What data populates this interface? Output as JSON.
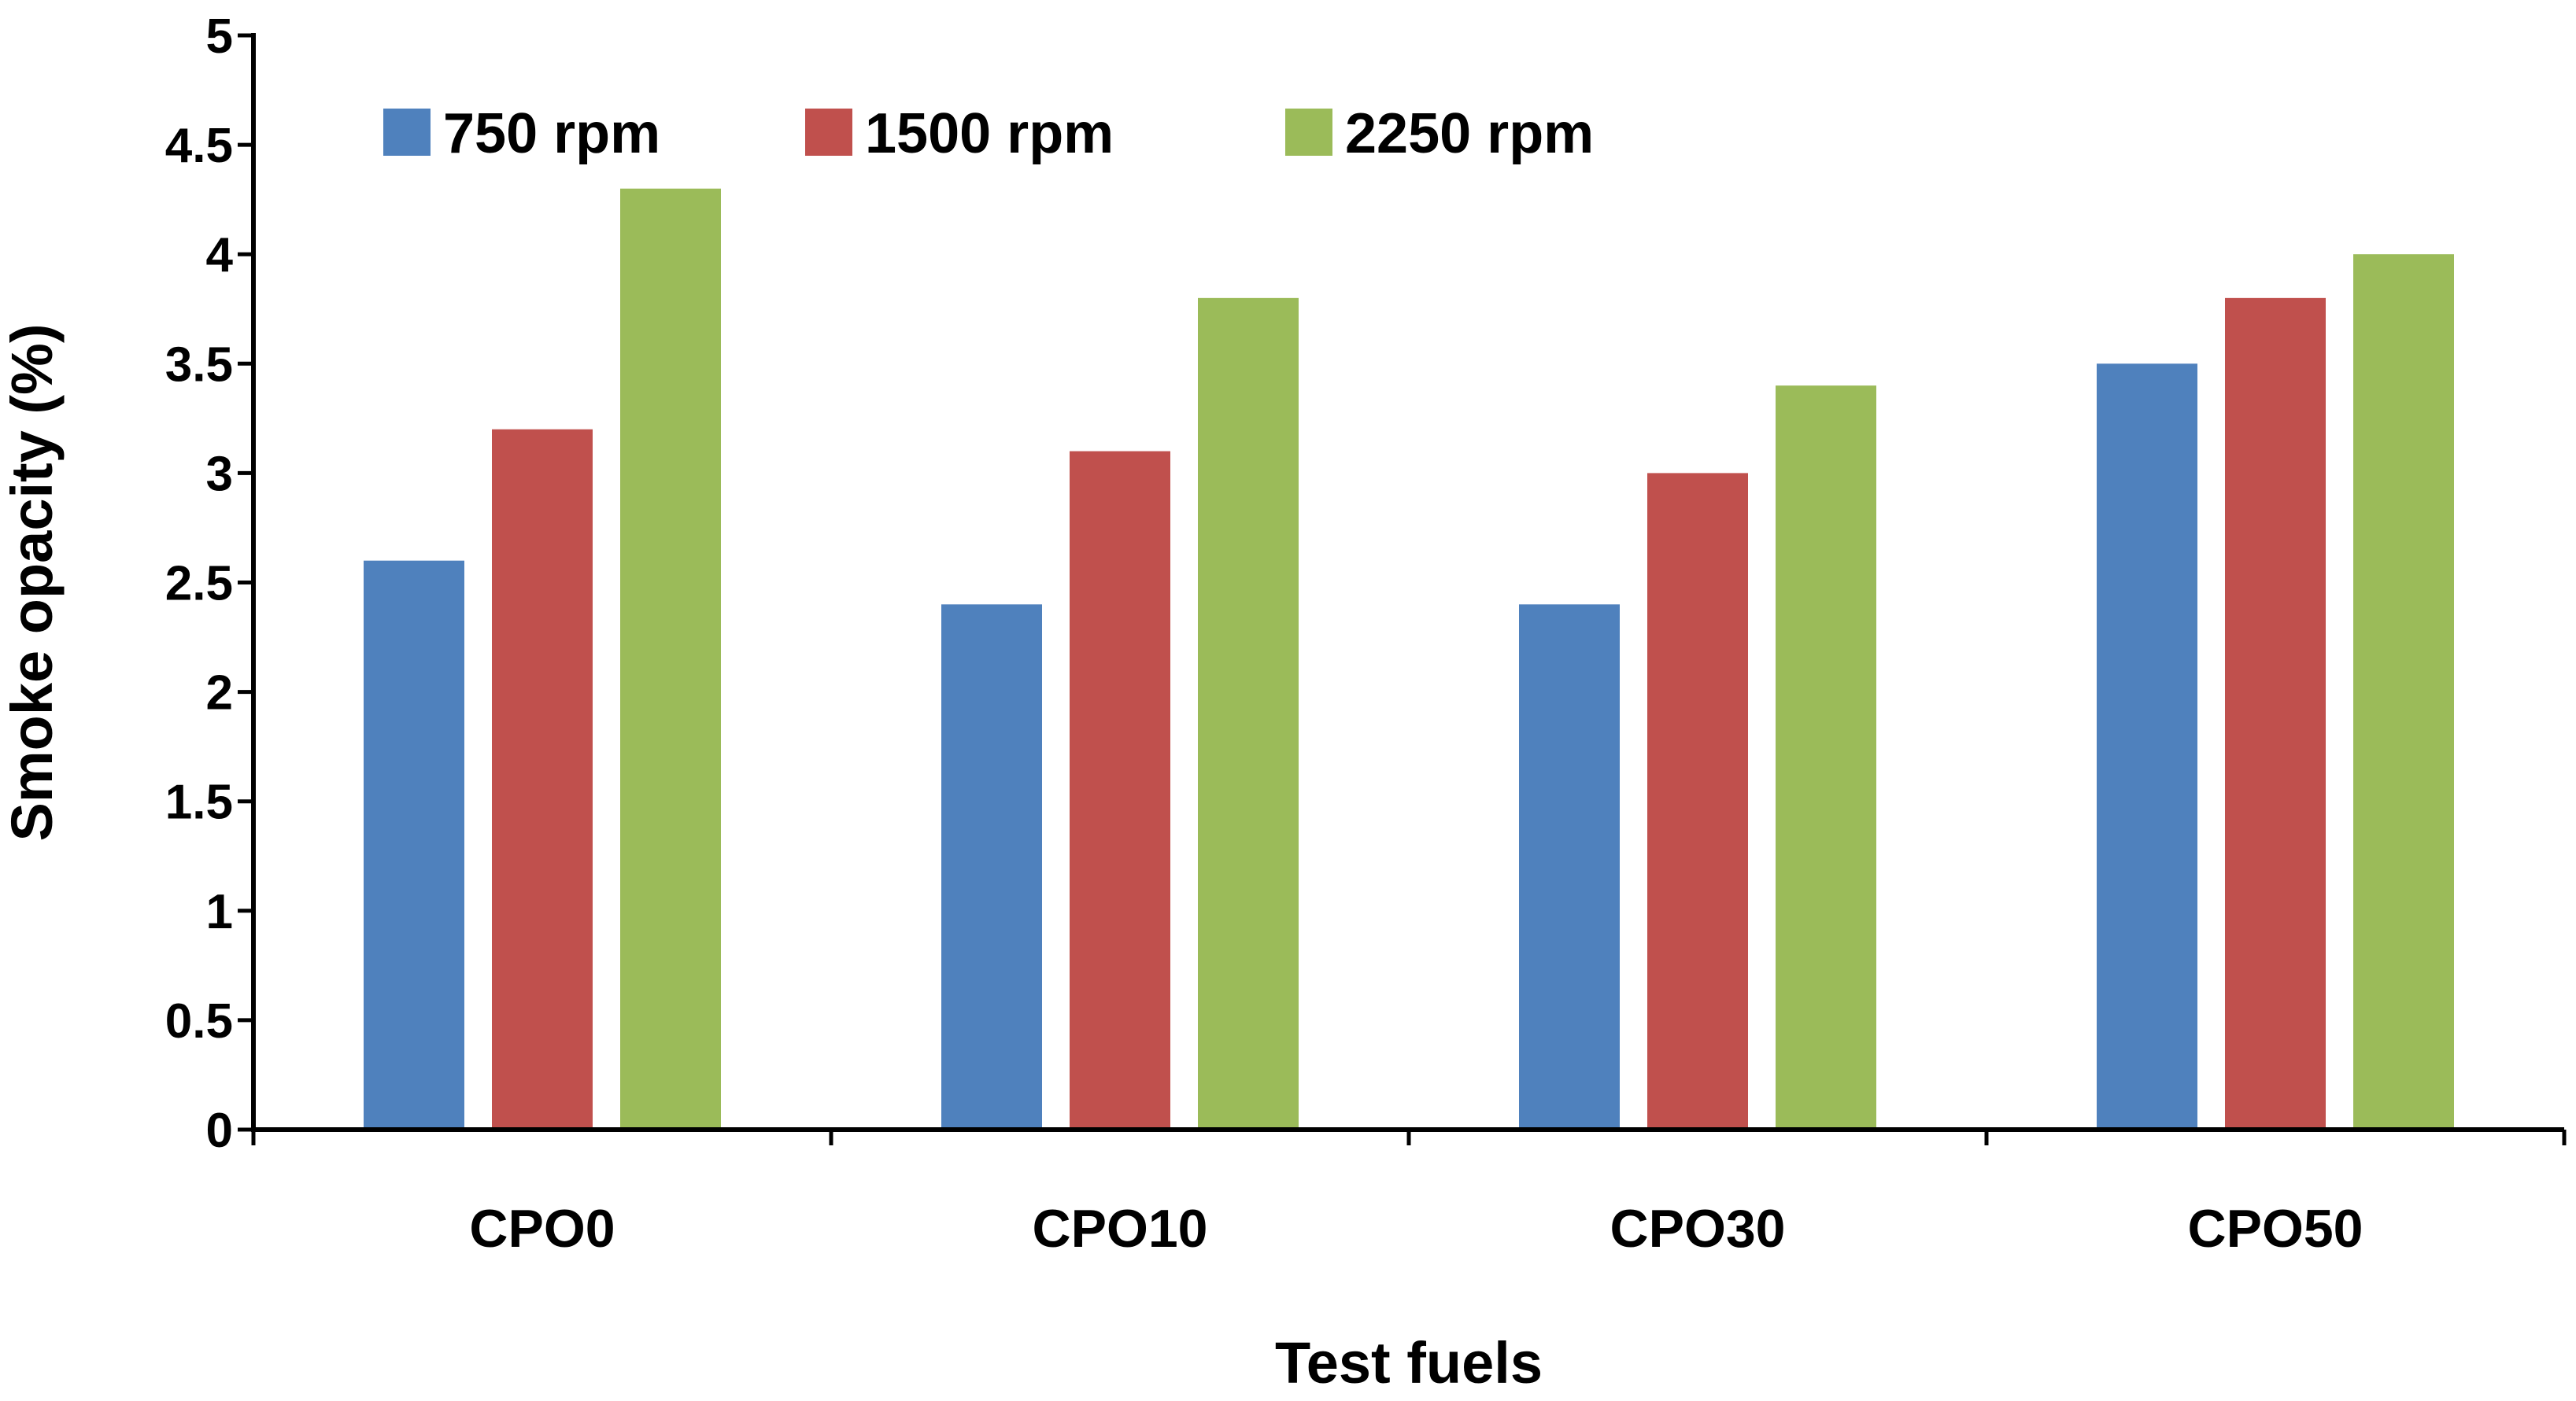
{
  "chart_data": {
    "type": "bar",
    "title": "",
    "xlabel": "Test fuels",
    "ylabel": "Smoke opacity (%)",
    "ylim": [
      0,
      5
    ],
    "yticks": [
      0,
      0.5,
      1,
      1.5,
      2,
      2.5,
      3,
      3.5,
      4,
      4.5,
      5
    ],
    "ytick_labels": [
      "0",
      "0.5",
      "1",
      "1.5",
      "2",
      "2.5",
      "3",
      "3.5",
      "4",
      "4.5",
      "5"
    ],
    "grid": false,
    "legend_position": "top-left",
    "categories": [
      "CPO0",
      "CPO10",
      "CPO30",
      "CPO50"
    ],
    "series": [
      {
        "name": "750 rpm",
        "color": "#4F81BD",
        "values": [
          2.6,
          2.4,
          2.4,
          3.5
        ]
      },
      {
        "name": "1500 rpm",
        "color": "#C0504D",
        "values": [
          3.2,
          3.1,
          3.0,
          3.8
        ]
      },
      {
        "name": "2250 rpm",
        "color": "#9BBB59",
        "values": [
          4.3,
          3.8,
          3.4,
          4.0
        ]
      }
    ]
  }
}
